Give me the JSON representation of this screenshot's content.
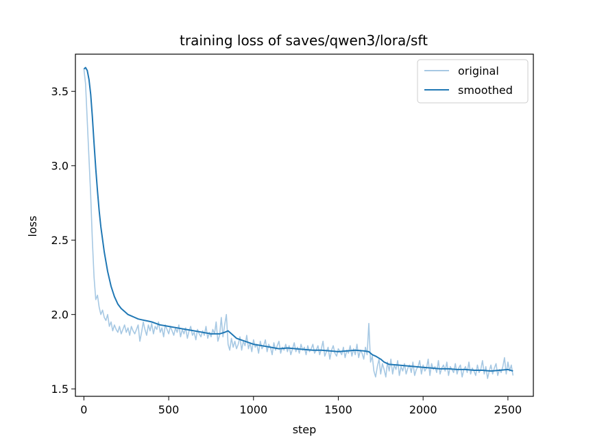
{
  "chart_data": {
    "type": "line",
    "title": "training loss of saves/qwen3/lora/sft",
    "xlabel": "step",
    "ylabel": "loss",
    "xlim": [
      -50,
      2650
    ],
    "ylim": [
      1.45,
      3.75
    ],
    "xticks": [
      0,
      500,
      1000,
      1500,
      2000,
      2500
    ],
    "yticks": [
      1.5,
      2.0,
      2.5,
      3.0,
      3.5
    ],
    "xtick_labels": [
      "0",
      "500",
      "1000",
      "1500",
      "2000",
      "2500"
    ],
    "ytick_labels": [
      "1.5",
      "2.0",
      "2.5",
      "3.0",
      "3.5"
    ],
    "legend_position": "top-right",
    "series": [
      {
        "name": "original",
        "color": "#a6c8e3",
        "x": [
          0,
          10,
          20,
          30,
          40,
          50,
          60,
          70,
          80,
          90,
          100,
          110,
          120,
          130,
          140,
          150,
          160,
          170,
          180,
          190,
          200,
          210,
          220,
          230,
          240,
          250,
          260,
          270,
          280,
          290,
          300,
          310,
          320,
          330,
          340,
          350,
          360,
          370,
          380,
          390,
          400,
          410,
          420,
          430,
          440,
          450,
          460,
          470,
          480,
          490,
          500,
          510,
          520,
          530,
          540,
          550,
          560,
          570,
          580,
          590,
          600,
          610,
          620,
          630,
          640,
          650,
          660,
          670,
          680,
          690,
          700,
          710,
          720,
          730,
          740,
          750,
          760,
          770,
          780,
          790,
          800,
          810,
          820,
          830,
          840,
          850,
          860,
          870,
          880,
          890,
          900,
          910,
          920,
          930,
          940,
          950,
          960,
          970,
          980,
          990,
          1000,
          1010,
          1020,
          1030,
          1040,
          1050,
          1060,
          1070,
          1080,
          1090,
          1100,
          1110,
          1120,
          1130,
          1140,
          1150,
          1160,
          1170,
          1180,
          1190,
          1200,
          1210,
          1220,
          1230,
          1240,
          1250,
          1260,
          1270,
          1280,
          1290,
          1300,
          1310,
          1320,
          1330,
          1340,
          1350,
          1360,
          1370,
          1380,
          1390,
          1400,
          1410,
          1420,
          1430,
          1440,
          1450,
          1460,
          1470,
          1480,
          1490,
          1500,
          1510,
          1520,
          1530,
          1540,
          1550,
          1560,
          1570,
          1580,
          1590,
          1600,
          1610,
          1620,
          1630,
          1640,
          1650,
          1660,
          1670,
          1680,
          1690,
          1700,
          1710,
          1720,
          1730,
          1740,
          1750,
          1760,
          1770,
          1780,
          1790,
          1800,
          1810,
          1820,
          1830,
          1840,
          1850,
          1860,
          1870,
          1880,
          1890,
          1900,
          1910,
          1920,
          1930,
          1940,
          1950,
          1960,
          1970,
          1980,
          1990,
          2000,
          2010,
          2020,
          2030,
          2040,
          2050,
          2060,
          2070,
          2080,
          2090,
          2100,
          2110,
          2120,
          2130,
          2140,
          2150,
          2160,
          2170,
          2180,
          2190,
          2200,
          2210,
          2220,
          2230,
          2240,
          2250,
          2260,
          2270,
          2280,
          2290,
          2300,
          2310,
          2320,
          2330,
          2340,
          2350,
          2360,
          2370,
          2380,
          2390,
          2400,
          2410,
          2420,
          2430,
          2440,
          2450,
          2460,
          2470,
          2480,
          2490,
          2500,
          2510,
          2520,
          2530
        ],
        "values": [
          3.65,
          3.55,
          3.3,
          3.05,
          2.8,
          2.5,
          2.25,
          2.1,
          2.13,
          2.05,
          2.0,
          2.03,
          1.98,
          1.96,
          2.0,
          1.92,
          1.95,
          1.89,
          1.93,
          1.9,
          1.88,
          1.92,
          1.87,
          1.9,
          1.93,
          1.88,
          1.91,
          1.86,
          1.92,
          1.89,
          1.87,
          1.9,
          1.93,
          1.82,
          1.88,
          1.95,
          1.9,
          1.86,
          1.93,
          1.89,
          1.94,
          1.87,
          1.92,
          1.9,
          1.95,
          1.88,
          1.91,
          1.85,
          1.93,
          1.9,
          1.87,
          1.92,
          1.89,
          1.86,
          1.91,
          1.88,
          1.93,
          1.85,
          1.9,
          1.87,
          1.91,
          1.84,
          1.89,
          1.92,
          1.86,
          1.88,
          1.83,
          1.9,
          1.87,
          1.85,
          1.89,
          1.86,
          1.92,
          1.84,
          1.88,
          1.85,
          1.9,
          1.87,
          1.95,
          1.82,
          1.86,
          1.98,
          1.85,
          1.93,
          2.0,
          1.8,
          1.76,
          1.84,
          1.78,
          1.82,
          1.77,
          1.8,
          1.85,
          1.76,
          1.82,
          1.79,
          1.86,
          1.77,
          1.81,
          1.75,
          1.83,
          1.78,
          1.8,
          1.74,
          1.82,
          1.77,
          1.79,
          1.83,
          1.75,
          1.8,
          1.78,
          1.73,
          1.81,
          1.76,
          1.79,
          1.82,
          1.74,
          1.78,
          1.76,
          1.8,
          1.75,
          1.79,
          1.73,
          1.77,
          1.81,
          1.75,
          1.78,
          1.74,
          1.8,
          1.76,
          1.78,
          1.73,
          1.79,
          1.75,
          1.77,
          1.8,
          1.74,
          1.76,
          1.79,
          1.73,
          1.77,
          1.82,
          1.72,
          1.75,
          1.78,
          1.7,
          1.76,
          1.79,
          1.74,
          1.72,
          1.77,
          1.75,
          1.73,
          1.78,
          1.71,
          1.76,
          1.74,
          1.79,
          1.72,
          1.77,
          1.73,
          1.8,
          1.71,
          1.76,
          1.74,
          1.7,
          1.78,
          1.73,
          1.94,
          1.68,
          1.72,
          1.62,
          1.58,
          1.65,
          1.7,
          1.6,
          1.67,
          1.63,
          1.58,
          1.68,
          1.62,
          1.7,
          1.6,
          1.66,
          1.63,
          1.69,
          1.59,
          1.65,
          1.62,
          1.67,
          1.6,
          1.64,
          1.66,
          1.61,
          1.68,
          1.59,
          1.63,
          1.65,
          1.69,
          1.6,
          1.66,
          1.62,
          1.64,
          1.7,
          1.59,
          1.67,
          1.63,
          1.65,
          1.61,
          1.69,
          1.6,
          1.64,
          1.66,
          1.62,
          1.68,
          1.59,
          1.65,
          1.63,
          1.61,
          1.67,
          1.6,
          1.64,
          1.66,
          1.58,
          1.63,
          1.65,
          1.61,
          1.68,
          1.6,
          1.64,
          1.62,
          1.59,
          1.66,
          1.61,
          1.63,
          1.69,
          1.6,
          1.65,
          1.57,
          1.62,
          1.66,
          1.6,
          1.64,
          1.67,
          1.59,
          1.63,
          1.61,
          1.65,
          1.71,
          1.6,
          1.68,
          1.62,
          1.66,
          1.59
        ]
      },
      {
        "name": "smoothed",
        "color": "#1f77b4",
        "x": [
          0,
          10,
          20,
          30,
          40,
          50,
          60,
          70,
          80,
          90,
          100,
          120,
          140,
          160,
          180,
          200,
          220,
          240,
          260,
          280,
          300,
          320,
          340,
          360,
          380,
          400,
          450,
          500,
          550,
          600,
          650,
          700,
          750,
          800,
          830,
          850,
          880,
          900,
          950,
          1000,
          1050,
          1100,
          1150,
          1200,
          1250,
          1300,
          1350,
          1400,
          1450,
          1500,
          1550,
          1600,
          1650,
          1680,
          1700,
          1720,
          1750,
          1770,
          1800,
          1850,
          1900,
          1950,
          2000,
          2050,
          2100,
          2150,
          2200,
          2250,
          2300,
          2350,
          2400,
          2450,
          2500,
          2530
        ],
        "values": [
          3.65,
          3.66,
          3.64,
          3.58,
          3.48,
          3.33,
          3.15,
          2.98,
          2.83,
          2.7,
          2.59,
          2.42,
          2.29,
          2.19,
          2.12,
          2.07,
          2.04,
          2.02,
          2.0,
          1.99,
          1.98,
          1.97,
          1.965,
          1.96,
          1.955,
          1.95,
          1.93,
          1.92,
          1.91,
          1.9,
          1.89,
          1.88,
          1.87,
          1.87,
          1.88,
          1.89,
          1.86,
          1.84,
          1.82,
          1.8,
          1.79,
          1.78,
          1.77,
          1.775,
          1.77,
          1.765,
          1.76,
          1.76,
          1.755,
          1.75,
          1.755,
          1.76,
          1.755,
          1.75,
          1.73,
          1.72,
          1.7,
          1.68,
          1.665,
          1.66,
          1.655,
          1.65,
          1.645,
          1.64,
          1.635,
          1.635,
          1.63,
          1.63,
          1.625,
          1.625,
          1.62,
          1.625,
          1.63,
          1.62
        ]
      }
    ]
  }
}
